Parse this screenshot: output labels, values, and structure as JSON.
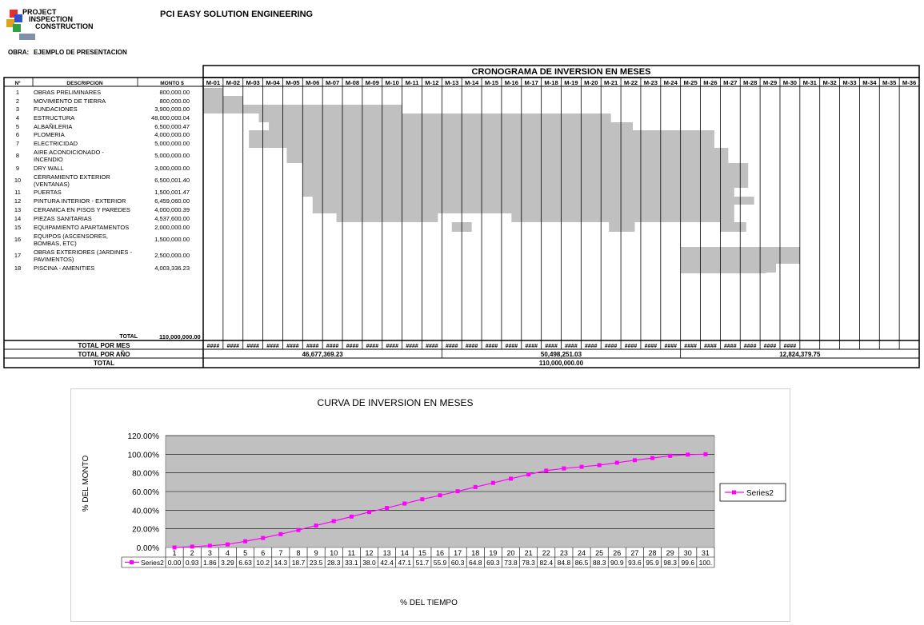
{
  "header": {
    "logo_lines": [
      "PROJECT",
      "INSPECTION",
      "CONSTRUCTION"
    ],
    "company": "PCI EASY SOLUTION ENGINEERING",
    "obra_label": "OBRA:",
    "obra_value": "EJEMPLO DE PRESENTACION"
  },
  "schedule": {
    "title": "CRONOGRAMA DE INVERSION EN MESES",
    "col_no": "Nº",
    "col_desc": "DESCRIPCION",
    "col_monto": "MONTO $",
    "months": [
      "M-01",
      "M-02",
      "M-03",
      "M-04",
      "M-05",
      "M-06",
      "M-07",
      "M-08",
      "M-09",
      "M-10",
      "M-11",
      "M-12",
      "M-13",
      "M-14",
      "M-15",
      "M-16",
      "M-17",
      "M-18",
      "M-19",
      "M-20",
      "M-21",
      "M-22",
      "M-23",
      "M-24",
      "M-25",
      "M-26",
      "M-27",
      "M-28",
      "M-29",
      "M-30",
      "M-31",
      "M-32",
      "M-33",
      "M-34",
      "M-35",
      "M-36"
    ],
    "rows": [
      {
        "n": "1",
        "desc": [
          "OBRAS PRELIMINARES"
        ],
        "amount": "800,000.00",
        "bars": [
          [
            1,
            2
          ]
        ]
      },
      {
        "n": "2",
        "desc": [
          "MOVIMIENTO DE TIERRA"
        ],
        "amount": "800,000.00",
        "bars": [
          [
            1,
            3
          ]
        ]
      },
      {
        "n": "3",
        "desc": [
          "FUNDACIONES"
        ],
        "amount": "3,900,000.00",
        "bars": [
          [
            1,
            11
          ]
        ]
      },
      {
        "n": "4",
        "desc": [
          "ESTRUCTURA"
        ],
        "amount": "48,000,000.04",
        "bars": [
          [
            3.8,
            21.5
          ]
        ]
      },
      {
        "n": "5",
        "desc": [
          "ALBAÑILERIA"
        ],
        "amount": "6,500,000.47",
        "bars": [
          [
            4.3,
            22.6
          ]
        ]
      },
      {
        "n": "6",
        "desc": [
          "PLOMERIA"
        ],
        "amount": "4,000,000.00",
        "bars": [
          [
            3.3,
            26.7
          ]
        ]
      },
      {
        "n": "7",
        "desc": [
          "ELECTRICIDAD"
        ],
        "amount": "5,000,000.00",
        "bars": [
          [
            3.3,
            26.7
          ]
        ]
      },
      {
        "n": "8",
        "desc": [
          "AIRE ACONDICIONADO -",
          "INCENDIO"
        ],
        "amount": "5,000,000.00",
        "bars": [
          [
            5.2,
            27.4
          ]
        ]
      },
      {
        "n": "9",
        "desc": [
          "DRY WALL"
        ],
        "amount": "3,000,000.00",
        "bars": [
          [
            6,
            28.4
          ]
        ]
      },
      {
        "n": "10",
        "desc": [
          "CERRAMIENTO EXTERIOR",
          "(VENTANAS)"
        ],
        "amount": "6,500,001.40",
        "bars": [
          [
            6,
            28.4
          ]
        ]
      },
      {
        "n": "11",
        "desc": [
          "PUERTAS"
        ],
        "amount": "1,500,001.47",
        "bars": [
          [
            6,
            27.7
          ]
        ]
      },
      {
        "n": "12",
        "desc": [
          "PINTURA INTERIOR - EXTERIOR"
        ],
        "amount": "6,459,060.00",
        "bars": [
          [
            6.5,
            28.7
          ]
        ]
      },
      {
        "n": "13",
        "desc": [
          "CERAMICA EN PISOS Y PAREDES"
        ],
        "amount": "4,000,000.39",
        "bars": [
          [
            6.5,
            27.7
          ]
        ]
      },
      {
        "n": "14",
        "desc": [
          "PIEZAS SANITARIAS"
        ],
        "amount": "4,537,600.00",
        "bars": [
          [
            7.7,
            12.8
          ],
          [
            16.5,
            27.7
          ]
        ]
      },
      {
        "n": "15",
        "desc": [
          "EQUIPAMIENTO APARTAMENTOS"
        ],
        "amount": "2,000,000.00",
        "bars": [
          [
            13.5,
            14.5
          ],
          [
            21.4,
            22.7
          ],
          [
            27,
            28.3
          ]
        ]
      },
      {
        "n": "16",
        "desc": [
          "EQUIPOS (ASCENSORES,",
          "BOMBAS, ETC)"
        ],
        "amount": "1,500,000.00",
        "bars": []
      },
      {
        "n": "17",
        "desc": [
          "OBRAS EXTERIORES (JARDINES -",
          "PAVIMENTOS)"
        ],
        "amount": "2,500,000.00",
        "bars": []
      },
      {
        "n": "18",
        "desc": [
          "PISCINA - AMENITIES"
        ],
        "amount": "4,003,336.23",
        "bars": [
          [
            25,
            29.3
          ]
        ]
      }
    ],
    "total_label": "TOTAL",
    "total_value": "110,000,000.00",
    "total_por_mes_label": "TOTAL POR MES",
    "hash_cell": "####",
    "hash_count": 30,
    "total_por_ano_label": "TOTAL POR AÑO",
    "year_totals": [
      "46,677,369.23",
      "50,498,251.03",
      "12,824,379.75"
    ],
    "total_label2": "TOTAL",
    "grand_total": "110,000,000.00",
    "bar_color": "#c0c0c0"
  },
  "chart_data": {
    "type": "line",
    "title": "CURVA DE INVERSION EN MESES",
    "xlabel": "% DEL TIEMPO",
    "ylabel": "% DEL MONTO",
    "x": [
      1,
      2,
      3,
      4,
      5,
      6,
      7,
      8,
      9,
      10,
      11,
      12,
      13,
      14,
      15,
      16,
      17,
      18,
      19,
      20,
      21,
      22,
      23,
      24,
      25,
      26,
      27,
      28,
      29,
      30,
      31
    ],
    "series": [
      {
        "name": "Series2",
        "color": "#ff00ff",
        "values": [
          0.0,
          0.93,
          1.86,
          3.29,
          6.63,
          10.2,
          14.3,
          18.7,
          23.5,
          28.3,
          33.1,
          38.0,
          42.4,
          47.1,
          51.7,
          55.9,
          60.3,
          64.8,
          69.3,
          73.8,
          78.3,
          82.4,
          84.8,
          86.5,
          88.3,
          90.9,
          93.6,
          95.9,
          98.3,
          99.6,
          100
        ],
        "table_labels": [
          "0.00",
          "0.93",
          "1.86",
          "3.29",
          "6.63",
          "10.2",
          "14.3",
          "18.7",
          "23.5",
          "28.3",
          "33.1",
          "38.0",
          "42.4",
          "47.1",
          "51.7",
          "55.9",
          "60.3",
          "64.8",
          "69.3",
          "73.8",
          "78.3",
          "82.4",
          "84.8",
          "86.5",
          "88.3",
          "90.9",
          "93.6",
          "95.9",
          "98.3",
          "99.6",
          "100."
        ]
      }
    ],
    "yticks": [
      "0.00%",
      "20.00%",
      "40.00%",
      "60.00%",
      "80.00%",
      "100.00%",
      "120.00%"
    ],
    "ylim": [
      0,
      120
    ],
    "plot_bg": "#c0c0c0",
    "grid": true,
    "legend": "right"
  }
}
